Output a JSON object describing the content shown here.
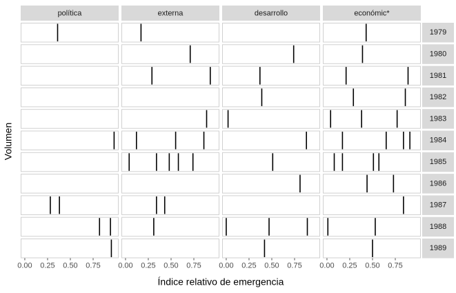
{
  "chart_data": {
    "type": "rug",
    "x_label": "Índice relativo de emergencia",
    "y_label": "Volumen",
    "facet_columns": [
      "política",
      "externa",
      "desarrollo",
      "económic*"
    ],
    "facet_rows": [
      "1979",
      "1980",
      "1981",
      "1982",
      "1983",
      "1984",
      "1985",
      "1986",
      "1987",
      "1988",
      "1989"
    ],
    "xlim": [
      -0.045,
      1.03
    ],
    "xticks": [
      {
        "value": 0,
        "label": "0.00"
      },
      {
        "value": 0.25,
        "label": "0.25"
      },
      {
        "value": 0.5,
        "label": "0.50"
      },
      {
        "value": 0.75,
        "label": "0.75"
      }
    ],
    "color": "#000000",
    "values": [
      [
        [
          0.36
        ],
        [
          0.17
        ],
        [],
        [
          0.43
        ]
      ],
      [
        [],
        [
          0.71
        ],
        [
          0.74
        ],
        [
          0.39
        ]
      ],
      [
        [],
        [
          0.29,
          0.93
        ],
        [
          0.37
        ],
        [
          0.21,
          0.89
        ]
      ],
      [
        [],
        [],
        [
          0.39
        ],
        [
          0.29,
          0.86
        ]
      ],
      [
        [],
        [
          0.89
        ],
        [
          0.02
        ],
        [
          0.04,
          0.38,
          0.77
        ]
      ],
      [
        [
          0.98
        ],
        [
          0.12,
          0.55,
          0.86
        ],
        [
          0.88
        ],
        [
          0.17,
          0.65,
          0.84,
          0.91
        ]
      ],
      [
        [],
        [
          0.04,
          0.34,
          0.48,
          0.58,
          0.74
        ],
        [
          0.51
        ],
        [
          0.08,
          0.17,
          0.51,
          0.57
        ]
      ],
      [
        [],
        [],
        [
          0.81
        ],
        [
          0.44,
          0.73
        ]
      ],
      [
        [
          0.28,
          0.38
        ],
        [
          0.34,
          0.43
        ],
        [],
        [
          0.84
        ]
      ],
      [
        [
          0.82,
          0.94
        ],
        [
          0.31
        ],
        [
          0.0,
          0.47,
          0.89
        ],
        [
          0.01,
          0.53
        ]
      ],
      [
        [
          0.95
        ],
        [],
        [
          0.42
        ],
        [
          0.5
        ]
      ]
    ]
  }
}
